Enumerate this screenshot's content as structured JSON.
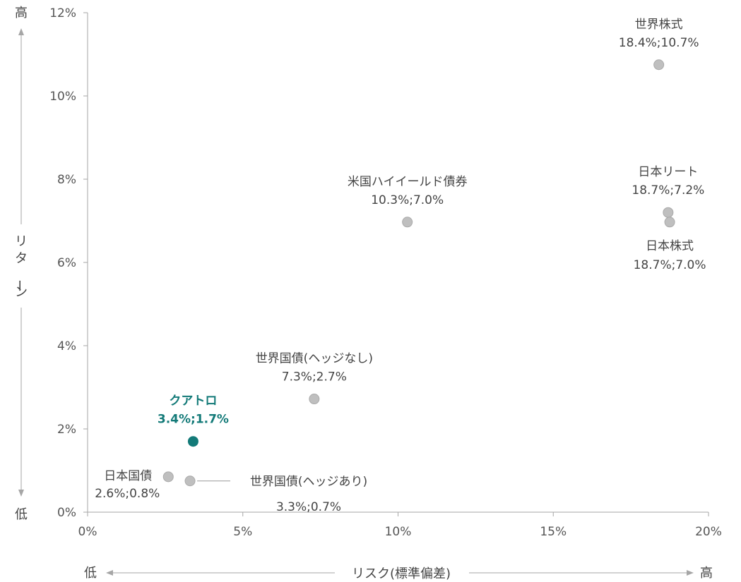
{
  "chart_data": {
    "type": "scatter",
    "title": "",
    "xlabel": "リスク(標準偏差)",
    "ylabel": "リターン",
    "x_low_label": "低",
    "x_high_label": "高",
    "y_low_label": "低",
    "y_high_label": "高",
    "xlim": [
      0,
      20
    ],
    "ylim": [
      0,
      12
    ],
    "x_ticks": [
      0,
      5,
      10,
      15,
      20
    ],
    "x_tick_labels": [
      "0%",
      "5%",
      "10%",
      "15%",
      "20%"
    ],
    "y_ticks": [
      0,
      2,
      4,
      6,
      8,
      10,
      12
    ],
    "y_tick_labels": [
      "0%",
      "2%",
      "4%",
      "6%",
      "8%",
      "10%",
      "12%"
    ],
    "grid": false,
    "colors": {
      "point": "#bfbfbf",
      "highlight": "#137a78",
      "text": "#444444",
      "axis": "#a6a6a6"
    },
    "points": [
      {
        "name": "世界株式",
        "value_label": "18.4%;10.7%",
        "x": 18.4,
        "y": 10.75,
        "highlight": false,
        "label_pos": "above"
      },
      {
        "name": "日本リート",
        "value_label": "18.7%;7.2%",
        "x": 18.7,
        "y": 7.2,
        "highlight": false,
        "label_pos": "above"
      },
      {
        "name": "日本株式",
        "value_label": "18.7%;7.0%",
        "x": 18.75,
        "y": 6.97,
        "highlight": false,
        "label_pos": "below"
      },
      {
        "name": "米国ハイイールド債券",
        "value_label": "10.3%;7.0%",
        "x": 10.3,
        "y": 6.97,
        "highlight": false,
        "label_pos": "above"
      },
      {
        "name": "世界国債(ヘッジなし)",
        "value_label": "7.3%;2.7%",
        "x": 7.3,
        "y": 2.72,
        "highlight": false,
        "label_pos": "above"
      },
      {
        "name": "クアトロ",
        "value_label": "3.4%;1.7%",
        "x": 3.4,
        "y": 1.7,
        "highlight": true,
        "label_pos": "above"
      },
      {
        "name": "日本国債",
        "value_label": "2.6%;0.8%",
        "x": 2.6,
        "y": 0.85,
        "highlight": false,
        "label_pos": "left"
      },
      {
        "name": "世界国債(ヘッジあり)",
        "value_label": "3.3%;0.7%",
        "x": 3.3,
        "y": 0.75,
        "highlight": false,
        "label_pos": "right-leader"
      }
    ]
  }
}
